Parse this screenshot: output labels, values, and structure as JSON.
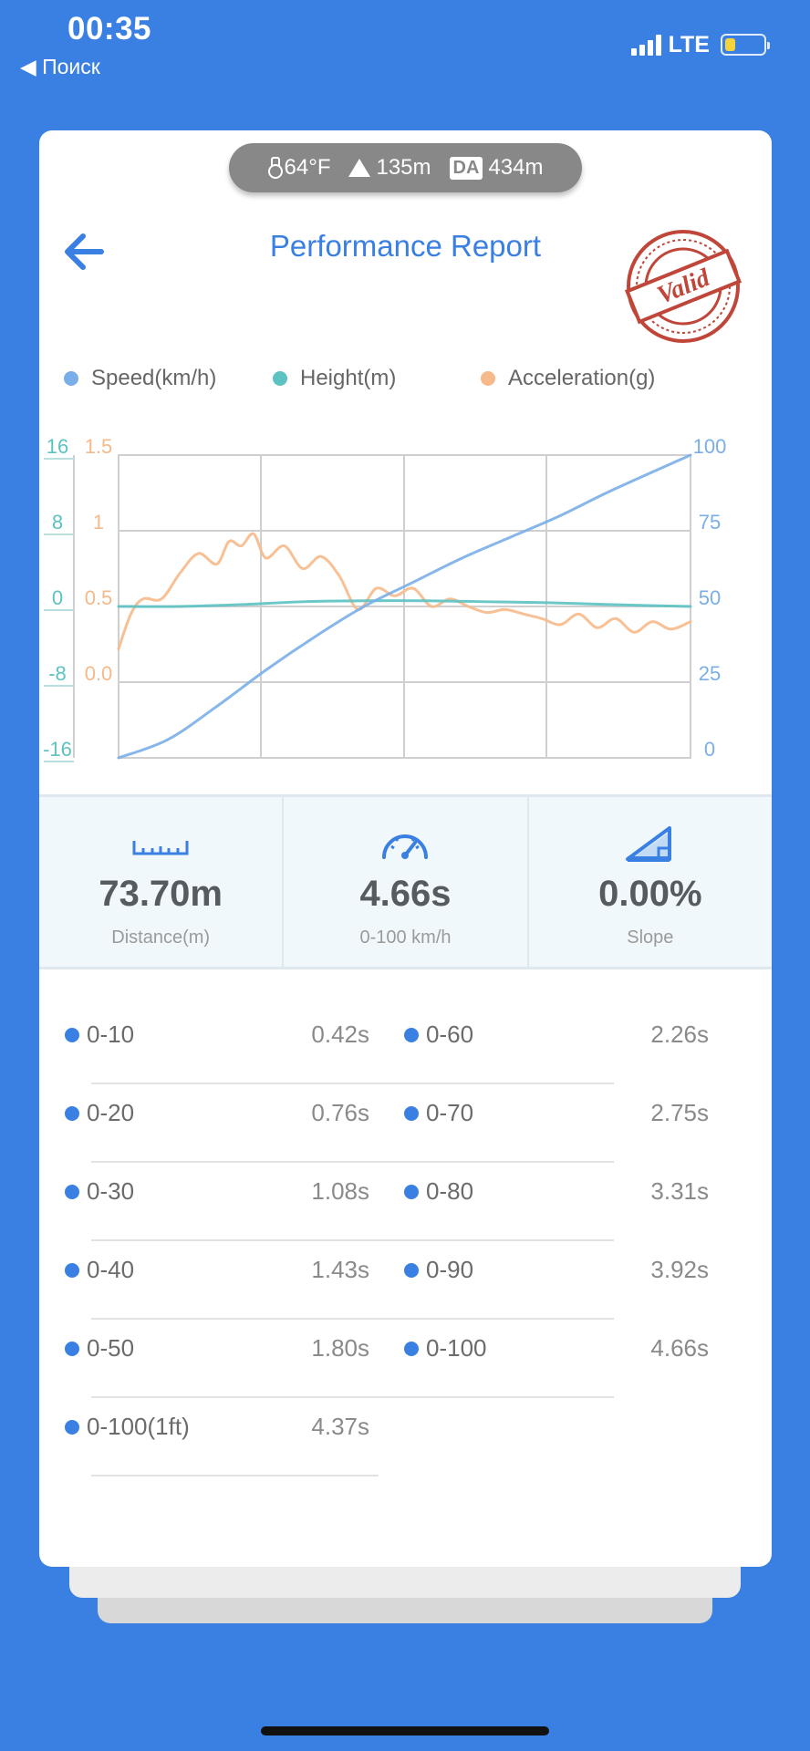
{
  "status_bar": {
    "time": "00:35",
    "back_label": "◀ Поиск",
    "network": "LTE",
    "battery_level": 0.25
  },
  "conditions": {
    "temperature": "64°F",
    "altitude": "135m",
    "da_label": "DA",
    "density_altitude": "434m"
  },
  "header": {
    "title": "Performance Report",
    "stamp_text": "Valid"
  },
  "legend": [
    {
      "label": "Speed(km/h)",
      "color": "#7aaee8"
    },
    {
      "label": "Height(m)",
      "color": "#5cc2c2"
    },
    {
      "label": "Acceleration(g)",
      "color": "#f6b98a"
    }
  ],
  "chart_data": {
    "type": "line",
    "grid": true,
    "left_axis_height": {
      "ticks": [
        "16",
        "8",
        "0",
        "-8",
        "-16"
      ],
      "range": [
        -16,
        16
      ],
      "color": "#5cc2c2"
    },
    "left_axis_accel": {
      "ticks": [
        "1.5",
        "1",
        "0.5",
        "0.0"
      ],
      "range": [
        -0.5,
        1.5
      ],
      "color": "#f6b98a"
    },
    "right_axis_speed": {
      "ticks": [
        "100",
        "75",
        "50",
        "25",
        "0"
      ],
      "range": [
        0,
        100
      ],
      "color": "#7aaee8"
    },
    "series": [
      {
        "name": "Speed(km/h)",
        "x": [
          0,
          0.4,
          0.8,
          1.2,
          1.6,
          2.0,
          2.4,
          2.8,
          3.2,
          3.6,
          4.0,
          4.66
        ],
        "values": [
          0,
          6,
          17,
          29,
          40,
          50,
          58,
          66,
          73,
          80,
          88,
          100
        ]
      },
      {
        "name": "Height(m)",
        "x": [
          0,
          0.5,
          1.0,
          1.5,
          2.0,
          2.5,
          3.0,
          3.5,
          4.0,
          4.66
        ],
        "values": [
          0,
          0,
          0.2,
          0.5,
          0.6,
          0.6,
          0.5,
          0.4,
          0.2,
          0
        ]
      },
      {
        "name": "Acceleration(g)",
        "x": [
          0,
          0.1,
          0.2,
          0.35,
          0.5,
          0.65,
          0.8,
          0.9,
          1.0,
          1.1,
          1.2,
          1.35,
          1.5,
          1.65,
          1.8,
          1.95,
          2.1,
          2.25,
          2.4,
          2.55,
          2.7,
          2.85,
          3.0,
          3.15,
          3.3,
          3.45,
          3.6,
          3.75,
          3.9,
          4.05,
          4.2,
          4.35,
          4.5,
          4.66
        ],
        "values": [
          0.22,
          0.45,
          0.55,
          0.55,
          0.72,
          0.85,
          0.78,
          0.93,
          0.9,
          0.98,
          0.82,
          0.9,
          0.75,
          0.83,
          0.7,
          0.48,
          0.62,
          0.57,
          0.62,
          0.5,
          0.55,
          0.5,
          0.46,
          0.48,
          0.45,
          0.42,
          0.38,
          0.45,
          0.36,
          0.42,
          0.33,
          0.4,
          0.35,
          0.4
        ]
      }
    ],
    "xlim": [
      0,
      4.66
    ]
  },
  "stats": [
    {
      "value": "73.70m",
      "label": "Distance(m)"
    },
    {
      "value": "4.66s",
      "label": "0-100 km/h"
    },
    {
      "value": "0.00%",
      "label": "Slope"
    }
  ],
  "timings": [
    {
      "name": "0-10",
      "value": "0.42s"
    },
    {
      "name": "0-60",
      "value": "2.26s"
    },
    {
      "name": "0-20",
      "value": "0.76s"
    },
    {
      "name": "0-70",
      "value": "2.75s"
    },
    {
      "name": "0-30",
      "value": "1.08s"
    },
    {
      "name": "0-80",
      "value": "3.31s"
    },
    {
      "name": "0-40",
      "value": "1.43s"
    },
    {
      "name": "0-90",
      "value": "3.92s"
    },
    {
      "name": "0-50",
      "value": "1.80s"
    },
    {
      "name": "0-100",
      "value": "4.66s"
    },
    {
      "name": "0-100(1ft)",
      "value": "4.37s"
    }
  ]
}
